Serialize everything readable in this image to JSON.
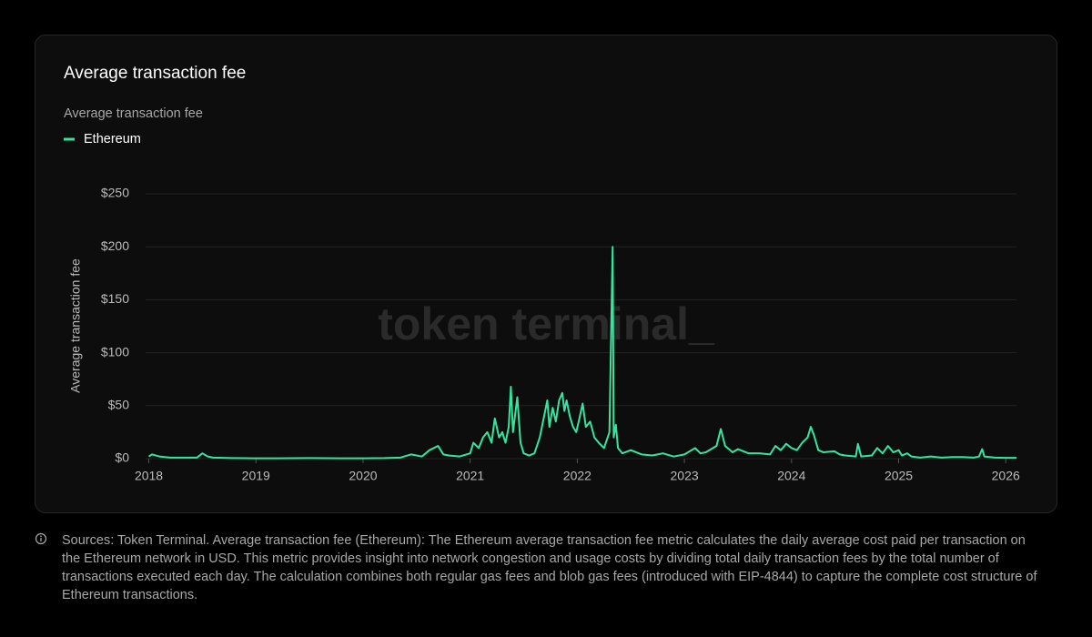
{
  "chart_data": {
    "type": "line",
    "title": "Average transaction fee",
    "subtitle": "Average transaction fee",
    "ylabel": "Average transaction fee",
    "watermark": "token terminal_",
    "x": [
      2018.0,
      2018.03,
      2018.1,
      2018.2,
      2018.3,
      2018.45,
      2018.5,
      2018.55,
      2018.6,
      2018.8,
      2019.0,
      2019.2,
      2019.5,
      2019.8,
      2020.0,
      2020.2,
      2020.35,
      2020.45,
      2020.55,
      2020.62,
      2020.7,
      2020.75,
      2020.8,
      2020.9,
      2021.0,
      2021.03,
      2021.08,
      2021.12,
      2021.16,
      2021.2,
      2021.23,
      2021.27,
      2021.3,
      2021.33,
      2021.36,
      2021.38,
      2021.4,
      2021.44,
      2021.47,
      2021.5,
      2021.55,
      2021.6,
      2021.65,
      2021.7,
      2021.72,
      2021.74,
      2021.77,
      2021.8,
      2021.83,
      2021.86,
      2021.88,
      2021.9,
      2021.93,
      2021.96,
      2021.99,
      2022.02,
      2022.05,
      2022.08,
      2022.12,
      2022.16,
      2022.2,
      2022.25,
      2022.3,
      2022.33,
      2022.34,
      2022.36,
      2022.38,
      2022.42,
      2022.5,
      2022.6,
      2022.7,
      2022.8,
      2022.9,
      2023.0,
      2023.1,
      2023.15,
      2023.2,
      2023.3,
      2023.34,
      2023.38,
      2023.45,
      2023.5,
      2023.6,
      2023.7,
      2023.8,
      2023.85,
      2023.9,
      2023.95,
      2024.0,
      2024.05,
      2024.1,
      2024.15,
      2024.18,
      2024.21,
      2024.25,
      2024.3,
      2024.4,
      2024.45,
      2024.5,
      2024.6,
      2024.62,
      2024.65,
      2024.75,
      2024.8,
      2024.85,
      2024.9,
      2024.95,
      2025.0,
      2025.03,
      2025.08,
      2025.12,
      2025.2,
      2025.3,
      2025.4,
      2025.5,
      2025.6,
      2025.7,
      2025.75,
      2025.78,
      2025.8,
      2025.9,
      2026.0,
      2026.1
    ],
    "series": [
      {
        "name": "Ethereum",
        "color": "#33e6a0",
        "values": [
          2,
          4,
          2,
          1,
          1,
          1,
          5,
          2,
          1,
          0.5,
          0.3,
          0.3,
          0.5,
          0.3,
          0.3,
          0.5,
          1,
          4,
          2,
          8,
          12,
          4,
          3,
          2,
          5,
          15,
          10,
          20,
          25,
          15,
          38,
          20,
          25,
          15,
          30,
          68,
          25,
          58,
          15,
          5,
          3,
          5,
          20,
          45,
          55,
          30,
          48,
          35,
          55,
          62,
          45,
          55,
          40,
          30,
          25,
          38,
          52,
          30,
          35,
          20,
          15,
          10,
          25,
          200,
          20,
          32,
          10,
          5,
          8,
          4,
          3,
          5,
          2,
          4,
          10,
          5,
          6,
          12,
          28,
          12,
          6,
          9,
          5,
          5,
          4,
          12,
          8,
          14,
          10,
          8,
          15,
          20,
          30,
          22,
          8,
          6,
          7,
          4,
          3,
          2,
          14,
          2,
          3,
          10,
          5,
          12,
          6,
          8,
          3,
          5,
          2,
          1,
          2,
          1,
          1.5,
          1.5,
          1,
          2,
          9,
          2,
          1,
          0.8,
          0.8
        ]
      }
    ],
    "xlim": [
      2017.97,
      2026.1
    ],
    "xticks": [
      2018,
      2019,
      2020,
      2021,
      2022,
      2023,
      2024,
      2025,
      2026
    ],
    "ylim": [
      0,
      250
    ],
    "yticks": [
      {
        "value": 0,
        "label": "$0"
      },
      {
        "value": 50,
        "label": "$50"
      },
      {
        "value": 100,
        "label": "$100"
      },
      {
        "value": 150,
        "label": "$150"
      },
      {
        "value": 200,
        "label": "$200"
      },
      {
        "value": 250,
        "label": "$250"
      }
    ],
    "grid": true
  },
  "footnote": "Sources: Token Terminal. Average transaction fee (Ethereum): The Ethereum average transaction fee metric calculates the daily average cost paid per transaction on the Ethereum network in USD. This metric provides insight into network congestion and usage costs by dividing total daily transaction fees by the total number of transactions executed each day. The calculation combines both regular gas fees and blob gas fees (introduced with EIP-4844) to capture the complete cost structure of Ethereum transactions."
}
